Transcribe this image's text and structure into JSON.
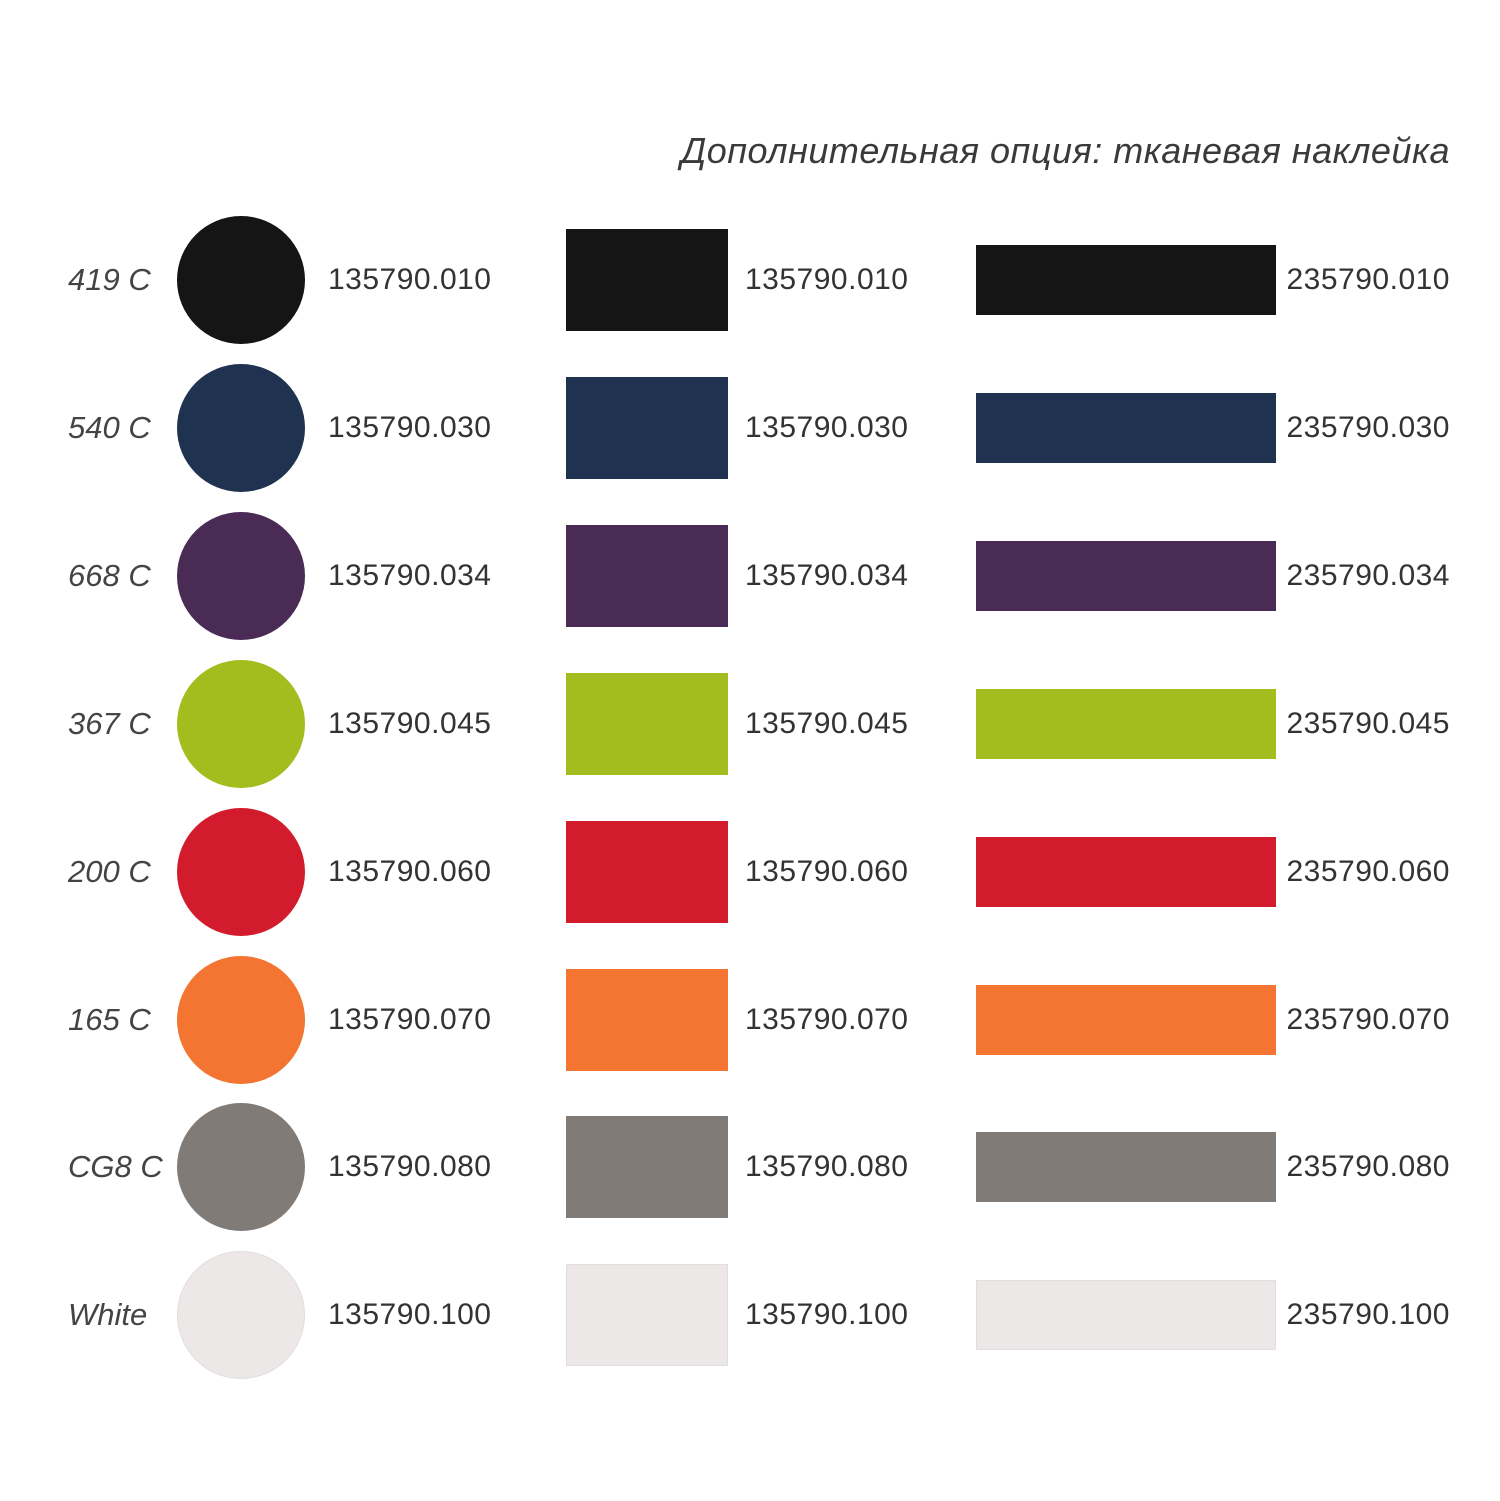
{
  "title": "Дополнительная опция: тканевая наклейка",
  "rows": [
    {
      "pantone": "419 C",
      "color": "#151515",
      "code_circle": "135790.010",
      "code_rect": "135790.010",
      "code_strip": "235790.010"
    },
    {
      "pantone": "540 C",
      "color": "#1f3350",
      "code_circle": "135790.030",
      "code_rect": "135790.030",
      "code_strip": "235790.030"
    },
    {
      "pantone": "668 C",
      "color": "#4a2b56",
      "code_circle": "135790.034",
      "code_rect": "135790.034",
      "code_strip": "235790.034"
    },
    {
      "pantone": "367 C",
      "color": "#a3bd1f",
      "code_circle": "135790.045",
      "code_rect": "135790.045",
      "code_strip": "235790.045"
    },
    {
      "pantone": "200 C",
      "color": "#d21b2d",
      "code_circle": "135790.060",
      "code_rect": "135790.060",
      "code_strip": "235790.060"
    },
    {
      "pantone": "165 C",
      "color": "#f47431",
      "code_circle": "135790.070",
      "code_rect": "135790.070",
      "code_strip": "235790.070"
    },
    {
      "pantone": "CG8 C",
      "color": "#807b77",
      "code_circle": "135790.080",
      "code_rect": "135790.080",
      "code_strip": "235790.080"
    },
    {
      "pantone": "White",
      "color": "#ece8e8",
      "code_circle": "135790.100",
      "code_rect": "135790.100",
      "code_strip": "235790.100"
    }
  ]
}
